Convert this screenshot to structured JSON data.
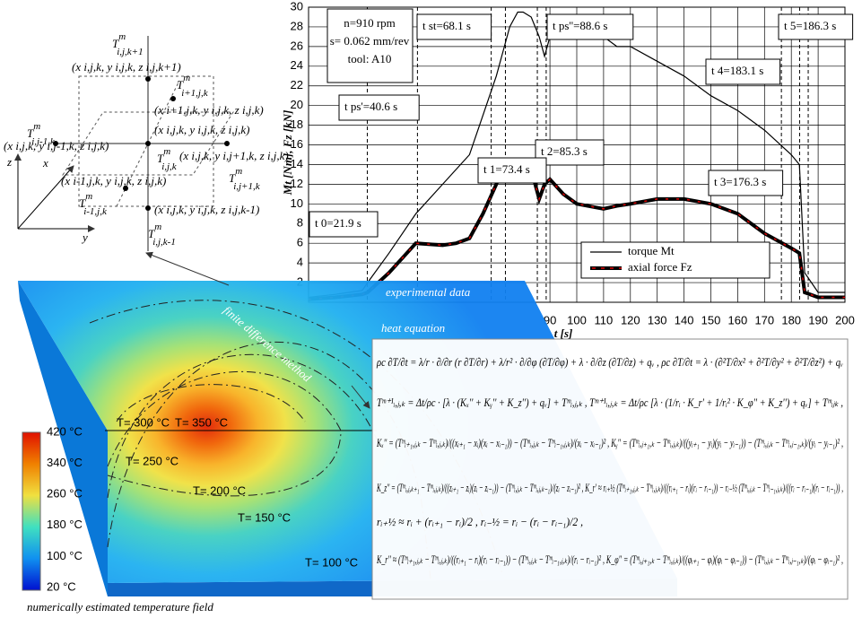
{
  "chart_data": {
    "type": "line",
    "xlabel": "t [s]",
    "ylabel": "Mt [Nm], Fz [kN]",
    "x": [
      0,
      10,
      20,
      22,
      30,
      40,
      50,
      55,
      60,
      65,
      70,
      73,
      75,
      78,
      80,
      83,
      86,
      88,
      90,
      95,
      100,
      110,
      115,
      120,
      130,
      140,
      150,
      160,
      170,
      180,
      183,
      185,
      190,
      200
    ],
    "series": [
      {
        "name": "torque Mt",
        "color": "#000000",
        "values": [
          0.5,
          0.8,
          1.2,
          2,
          5,
          9,
          12,
          13.5,
          15,
          19,
          23,
          26,
          28,
          29.5,
          29.5,
          29,
          27,
          25,
          27,
          28,
          28,
          27,
          26,
          26,
          24.5,
          23,
          21,
          19.5,
          17.5,
          15,
          14,
          3,
          1,
          1
        ]
      },
      {
        "name": "axial force Fz",
        "color": "#e00000",
        "values": [
          0.3,
          0.5,
          0.8,
          1,
          3,
          6,
          5.8,
          6,
          6.5,
          9,
          12,
          14,
          14,
          14,
          14,
          13.5,
          10.5,
          12,
          12.5,
          11,
          10,
          9.5,
          9.8,
          10,
          10.5,
          10.5,
          10,
          9,
          7,
          5.5,
          5,
          1,
          0.5,
          0.5
        ]
      }
    ],
    "xlim": [
      0,
      200
    ],
    "ylim": [
      0,
      30
    ],
    "xticks": [
      90,
      100,
      110,
      120,
      130,
      140,
      150,
      160,
      170,
      180,
      190,
      200
    ],
    "yticks": [
      2,
      4,
      6,
      8,
      10,
      12,
      14,
      16,
      18,
      20,
      22,
      24,
      26,
      28,
      30
    ],
    "grid": true,
    "legend": "lower right",
    "info": [
      "n=910 rpm",
      "s= 0.062 mm/rev",
      "tool: A10"
    ],
    "annotations": [
      {
        "label": "t st=68.1 s",
        "t": 68.1
      },
      {
        "label": "t ps''=88.6 s",
        "t": 88.6
      },
      {
        "label": "t 5=186.3 s",
        "t": 186.3
      },
      {
        "label": "t 4=183.1 s",
        "t": 183.1
      },
      {
        "label": "t ps'=40.6 s",
        "t": 40.6
      },
      {
        "label": "t 2=85.3 s",
        "t": 85.3
      },
      {
        "label": "t 1=73.4 s",
        "t": 73.4
      },
      {
        "label": "t 3=176.3 s",
        "t": 176.3
      },
      {
        "label": "t 0=21.9 s",
        "t": 21.9
      }
    ]
  },
  "diagram": {
    "nodes": [
      {
        "base": "T",
        "sup": "m",
        "sub": "i,j,k+1"
      },
      {
        "base": "T",
        "sup": "m",
        "sub": "i+1,j,k"
      },
      {
        "base": "T",
        "sup": "m",
        "sub": "i,j-1,k"
      },
      {
        "base": "T",
        "sup": "m",
        "sub": "i,j,k"
      },
      {
        "base": "T",
        "sup": "m",
        "sub": "i,j+1,k"
      },
      {
        "base": "T",
        "sup": "m",
        "sub": "i-1,j,k"
      },
      {
        "base": "T",
        "sup": "m",
        "sub": "i,j,k-1"
      }
    ],
    "coords": [
      "(x i,j,k, y i,j,k, z i,j,k+1)",
      "(x i+1,j,k, y i,j,k, z i,j,k)",
      "(x i,j,k, y i,j-1,k, z i,j,k)",
      "(x i,j,k, y i,j,k, z i,j,k)",
      "(x i,j,k, y i,j+1,k, z i,j,k)",
      "(x i-1,j,k, y i,j,k, z i,j,k)",
      "(x i,j,k, y i,j,k, z i,j,k-1)"
    ],
    "axes": [
      "z",
      "x",
      "y"
    ]
  },
  "overlay": {
    "experimental": "experimental data",
    "heat": "heat equation",
    "fdm": "finite difference method",
    "field": "numerically estimated temperature field",
    "colorbar": [
      "420 °C",
      "340 °C",
      "260 °C",
      "180 °C",
      "100 °C",
      "20 °C"
    ],
    "isotherms": [
      "T= 300 °C",
      "T= 350 °C",
      "T= 250 °C",
      "T= 200 °C",
      "T= 150 °C",
      "T= 100 °C"
    ]
  },
  "equations": [
    "ρc ∂T/∂t = λ/r · ∂/∂r (r ∂T/∂r) + λ/r² · ∂/∂φ (∂T/∂φ) + λ · ∂/∂z (∂T/∂z) + qᵥ ,  ρc ∂T/∂t = λ · (∂²T/∂x² + ∂²T/∂y² + ∂²T/∂z²) + qᵥ",
    "Tᵐ⁺¹ᵢ,ⱼ,ₖ = Δt/ρc · [λ · (Kₓ'' + Kᵧ'' + K_z'') + qᵥ] + Tᵐᵢ,ⱼ,ₖ ,  Tᵐ⁺¹ᵢ,ⱼ,ₖ = Δt/ρc [λ · (1/rᵢ · K_r' + 1/rᵢ² · K_φ'' + K_z'') + qᵥ] + Tᵐᵢⱼₖ ,",
    "Kₓ'' = (Tᵐᵢ₊₁,ⱼ,ₖ − Tᵐᵢ,ⱼ,ₖ)/((xᵢ₊₁ − xᵢ)(xᵢ − xᵢ₋₁)) − (Tᵐᵢ,ⱼ,ₖ − Tᵐᵢ₋₁,ⱼ,ₖ)/(xᵢ − xᵢ₋₁)² ,  Kᵧ'' = (Tᵐᵢ,ⱼ₊₁,ₖ − Tᵐᵢ,ⱼ,ₖ)/((yᵢ₊₁ − yᵢ)(yᵢ − yᵢ₋₁)) − (Tᵐᵢ,ⱼ,ₖ − Tᵐᵢ,ⱼ₋₁,ₖ)/(yᵢ − yᵢ₋₁)² ,",
    "K_z'' = (Tᵐᵢ,ⱼ,ₖ₊₁ − Tᵐᵢ,ⱼ,ₖ)/((zᵢ₊₁ − zᵢ)(zᵢ − zᵢ₋₁)) − (Tᵐᵢ,ⱼ,ₖ − Tᵐᵢ,ⱼ,ₖ₋₁)/(zᵢ − zᵢ₋₁)² ,  K_r' ≈ rᵢ₊½ (Tᵐᵢ₊₁,ⱼ,ₖ − Tᵐᵢ,ⱼ,ₖ)/((rᵢ₊₁ − rᵢ)(rᵢ − rᵢ₋₁)) − rᵢ₋½ (Tᵐᵢ,ⱼ,ₖ − Tᵐᵢ₋₁,ⱼ,ₖ)/((rᵢ − rᵢ₋₁)(rᵢ − rᵢ₋₁)) ,",
    "rᵢ₊½ ≈ rᵢ + (rᵢ₊₁ − rᵢ)/2 ,  rᵢ₋½ = rᵢ − (rᵢ − rᵢ₋₁)/2 ,",
    "K_r'' ≈ (Tᵐᵢ₊₁,ⱼ,ₖ − Tᵐᵢ,ⱼ,ₖ)/((rᵢ₊₁ − rᵢ)(rᵢ − rᵢ₋₁)) − (Tᵐᵢ,ⱼ,ₖ − Tᵐᵢ₋₁,ⱼ,ₖ)/(rᵢ − rᵢ₋₁)² ,  K_φ'' = (Tᵐᵢ,ⱼ₊₁,ₖ − Tᵐᵢ,ⱼ,ₖ)/((φᵢ₊₁ − φᵢ)(φᵢ − φᵢ₋₁)) − (Tᵐᵢ,ⱼ,ₖ − Tᵐᵢ,ⱼ₋₁,ₖ)/(φᵢ − φᵢ₋₁)² ,"
  ]
}
